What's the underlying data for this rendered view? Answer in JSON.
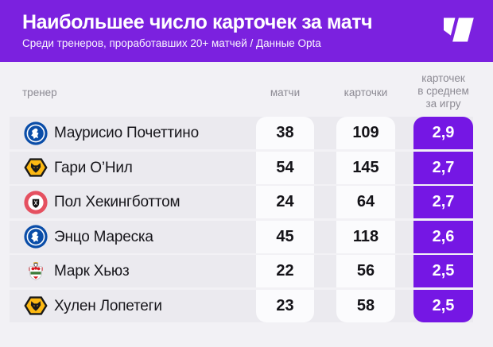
{
  "header": {
    "title": "Наибольшее число карточек за матч",
    "subtitle": "Среди тренеров, проработавших 20+ матчей / Данные Opta",
    "logo_icon": "sports-ru-logo",
    "bg_color": "#7B21DF"
  },
  "columns": {
    "coach": "тренер",
    "matches": "матчи",
    "cards": "карточки",
    "avg": "карточек\nв среднем\nза игру"
  },
  "rows": [
    {
      "club_icon": "chelsea-badge",
      "coach": "Маурисио Почеттино",
      "matches": "38",
      "cards": "109",
      "avg": "2,9"
    },
    {
      "club_icon": "wolverhampton-badge",
      "coach": "Гари О’Нил",
      "matches": "54",
      "cards": "145",
      "avg": "2,7"
    },
    {
      "club_icon": "sheffield-united-badge",
      "coach": "Пол Хекингботтом",
      "matches": "24",
      "cards": "64",
      "avg": "2,7"
    },
    {
      "club_icon": "chelsea-badge",
      "coach": "Энцо Мареска",
      "matches": "45",
      "cards": "118",
      "avg": "2,6"
    },
    {
      "club_icon": "southampton-badge",
      "coach": "Марк Хьюз",
      "matches": "22",
      "cards": "56",
      "avg": "2,5"
    },
    {
      "club_icon": "wolverhampton-badge",
      "coach": "Хулен Лопетеги",
      "matches": "23",
      "cards": "58",
      "avg": "2,5"
    }
  ],
  "colors": {
    "header_purple": "#7B21DF",
    "cell_purple": "#7517E4",
    "row_bg": "#EBEAEF",
    "page_bg": "#F2F1F5",
    "white_cell": "#FBFBFD",
    "muted_text": "#8C8A93",
    "dark_text": "#141318"
  },
  "chart_data": {
    "type": "table",
    "title": "Наибольшее число карточек за матч",
    "subtitle": "Среди тренеров, проработавших 20+ матчей / Данные Opta",
    "columns": [
      "тренер",
      "матчи",
      "карточки",
      "карточек в среднем за игру"
    ],
    "rows": [
      [
        "Маурисио Почеттино",
        38,
        109,
        2.9
      ],
      [
        "Гари О’Нил",
        54,
        145,
        2.7
      ],
      [
        "Пол Хекингботтом",
        24,
        64,
        2.7
      ],
      [
        "Энцо Мареска",
        45,
        118,
        2.6
      ],
      [
        "Марк Хьюз",
        22,
        56,
        2.5
      ],
      [
        "Хулен Лопетеги",
        23,
        58,
        2.5
      ]
    ],
    "highlight_column": "карточек в среднем за игру",
    "source": "Opta"
  }
}
